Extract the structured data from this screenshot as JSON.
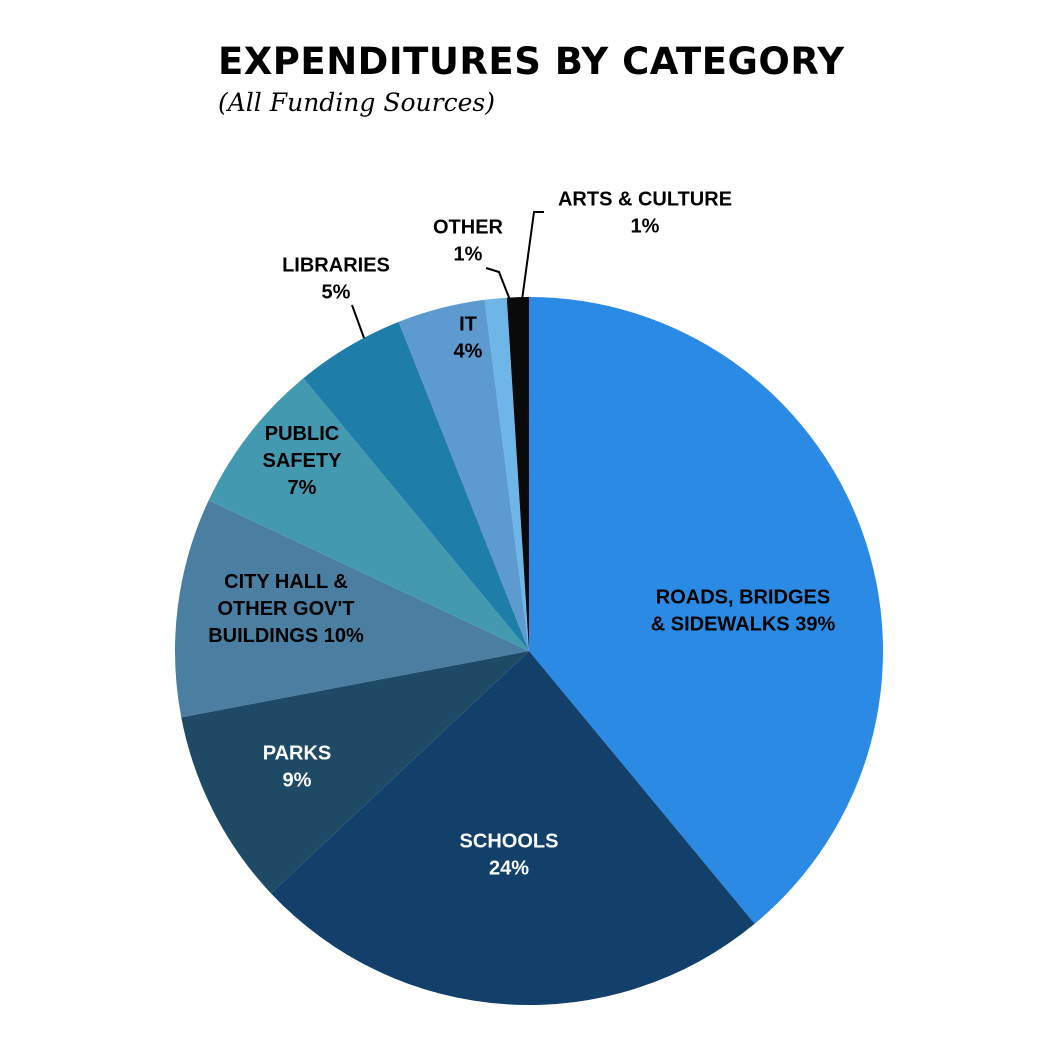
{
  "chart_data": {
    "type": "pie",
    "title": "EXPENDITURES BY CATEGORY",
    "subtitle": "(All Funding Sources)",
    "start_angle_deg": 0,
    "direction": "clockwise",
    "slices": [
      {
        "name_lines": [
          "ROADS, BRIDGES",
          "& SIDEWALKS 39%"
        ],
        "value": 39,
        "label": "39%",
        "color": "#2b8ae3",
        "text_color": "#000000",
        "label_placement": "inside"
      },
      {
        "name_lines": [
          "SCHOOLS",
          "24%"
        ],
        "value": 24,
        "label": "24%",
        "color": "#12406a",
        "text_color": "#ffffff",
        "label_placement": "inside"
      },
      {
        "name_lines": [
          "PARKS",
          "9%"
        ],
        "value": 9,
        "label": "9%",
        "color": "#1f4a66",
        "text_color": "#ffffff",
        "label_placement": "inside"
      },
      {
        "name_lines": [
          "CITY HALL &",
          "OTHER GOV'T",
          "BUILDINGS 10%"
        ],
        "value": 10,
        "label": "10%",
        "color": "#4a7fa1",
        "text_color": "#000000",
        "label_placement": "inside"
      },
      {
        "name_lines": [
          "PUBLIC",
          "SAFETY",
          "7%"
        ],
        "value": 7,
        "label": "7%",
        "color": "#4399b0",
        "text_color": "#000000",
        "label_placement": "inside"
      },
      {
        "name_lines": [
          "LIBRARIES",
          "5%"
        ],
        "value": 5,
        "label": "5%",
        "color": "#1f7ea8",
        "text_color": "#000000",
        "label_placement": "outside"
      },
      {
        "name_lines": [
          "IT",
          "4%"
        ],
        "value": 4,
        "label": "4%",
        "color": "#5c9acf",
        "text_color": "#000000",
        "label_placement": "inside"
      },
      {
        "name_lines": [
          "OTHER",
          "1%"
        ],
        "value": 1,
        "label": "1%",
        "color": "#6fb6e8",
        "text_color": "#000000",
        "label_placement": "outside"
      },
      {
        "name_lines": [
          "ARTS & CULTURE",
          "1%"
        ],
        "value": 1,
        "label": "1%",
        "color": "#0a0a0a",
        "text_color": "#000000",
        "label_placement": "outside"
      }
    ]
  }
}
